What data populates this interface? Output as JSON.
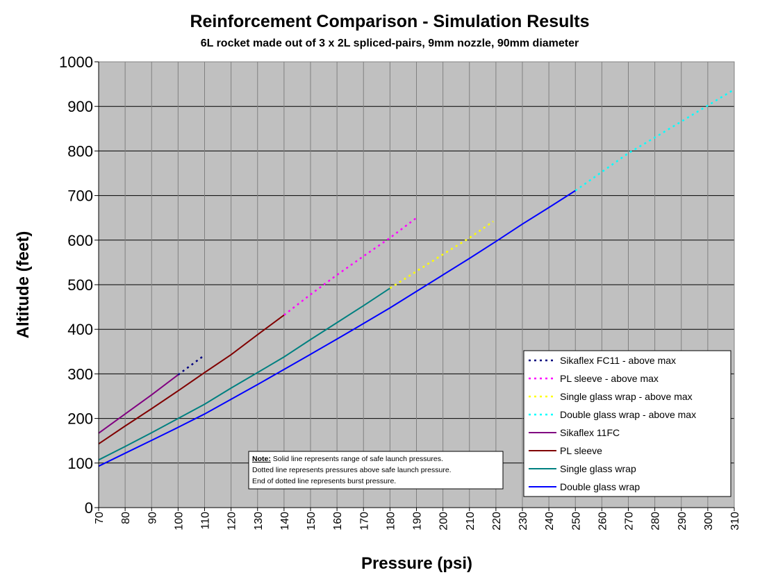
{
  "chart_data": {
    "type": "line",
    "title": "Reinforcement Comparison - Simulation Results",
    "subtitle": "6L rocket made out of 3 x 2L spliced-pairs, 9mm nozzle, 90mm diameter",
    "xlabel": "Pressure (psi)",
    "ylabel": "Altitude (feet)",
    "xlim": [
      70,
      310
    ],
    "ylim": [
      0,
      1000
    ],
    "xticks": [
      "70",
      "80",
      "90",
      "100",
      "110",
      "120",
      "130",
      "140",
      "150",
      "160",
      "170",
      "180",
      "190",
      "200",
      "210",
      "220",
      "230",
      "240",
      "250",
      "260",
      "270",
      "280",
      "290",
      "300",
      "310"
    ],
    "yticks": [
      "0",
      "100",
      "200",
      "300",
      "400",
      "500",
      "600",
      "700",
      "800",
      "900",
      "1000"
    ],
    "grid": true,
    "plot_background": "#c0c0c0",
    "legend_position": "bottom-right",
    "series": [
      {
        "name": "Sikaflex FC11 - above max",
        "color": "#000080",
        "style": "dotted",
        "x": [
          100,
          110
        ],
        "y": [
          298,
          342
        ]
      },
      {
        "name": "PL sleeve - above max",
        "color": "#ff00ff",
        "style": "dotted",
        "x": [
          140,
          150,
          160,
          170,
          180,
          190
        ],
        "y": [
          432,
          478,
          522,
          564,
          605,
          650
        ]
      },
      {
        "name": "Single glass wrap - above max",
        "color": "#ffff00",
        "style": "dotted",
        "x": [
          180,
          190,
          200,
          210,
          219
        ],
        "y": [
          492,
          530,
          568,
          605,
          642
        ]
      },
      {
        "name": "Double glass wrap - above max",
        "color": "#00ffff",
        "style": "dotted",
        "x": [
          250,
          260,
          270,
          280,
          290,
          300,
          310
        ],
        "y": [
          711,
          753,
          795,
          830,
          866,
          902,
          938
        ]
      },
      {
        "name": "Sikaflex 11FC",
        "color": "#800080",
        "style": "solid",
        "x": [
          70,
          80,
          90,
          100
        ],
        "y": [
          167,
          210,
          253,
          298
        ]
      },
      {
        "name": "PL sleeve",
        "color": "#800000",
        "style": "solid",
        "x": [
          70,
          80,
          90,
          100,
          110,
          120,
          130,
          140
        ],
        "y": [
          143,
          183,
          222,
          262,
          303,
          343,
          388,
          432
        ]
      },
      {
        "name": "Single glass wrap",
        "color": "#008080",
        "style": "solid",
        "x": [
          70,
          80,
          90,
          100,
          110,
          120,
          130,
          140,
          150,
          160,
          170,
          180
        ],
        "y": [
          107,
          137,
          168,
          200,
          232,
          268,
          303,
          338,
          377,
          415,
          453,
          492
        ]
      },
      {
        "name": "Double glass wrap",
        "color": "#0000ff",
        "style": "solid",
        "x": [
          70,
          80,
          90,
          100,
          110,
          120,
          130,
          140,
          150,
          160,
          170,
          180,
          190,
          200,
          210,
          220,
          230,
          240,
          250
        ],
        "y": [
          93,
          122,
          151,
          180,
          210,
          243,
          276,
          310,
          344,
          378,
          413,
          448,
          485,
          522,
          559,
          597,
          636,
          673,
          711
        ]
      }
    ],
    "note": {
      "label": "Note:",
      "line1": " Solid line represents range of safe launch pressures.",
      "line2": "Dotted line represents pressures above safe launch pressure.",
      "line3": "End of dotted line represents burst pressure."
    }
  }
}
